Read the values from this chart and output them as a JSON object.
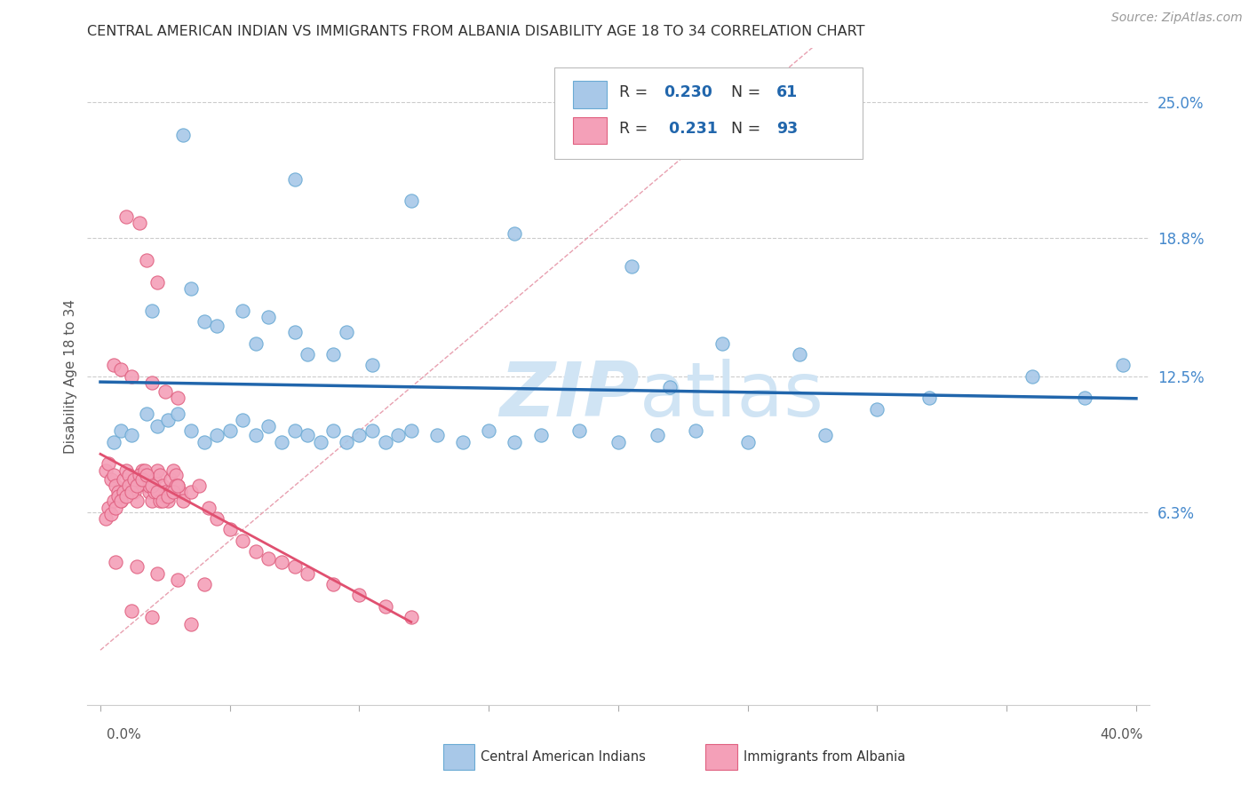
{
  "title": "CENTRAL AMERICAN INDIAN VS IMMIGRANTS FROM ALBANIA DISABILITY AGE 18 TO 34 CORRELATION CHART",
  "source": "Source: ZipAtlas.com",
  "ylabel": "Disability Age 18 to 34",
  "ytick_labels": [
    "25.0%",
    "18.8%",
    "12.5%",
    "6.3%"
  ],
  "ytick_values": [
    0.25,
    0.188,
    0.125,
    0.063
  ],
  "xlim": [
    -0.005,
    0.405
  ],
  "ylim": [
    -0.025,
    0.275
  ],
  "legend_r_blue": "0.230",
  "legend_n_blue": "61",
  "legend_r_pink": "0.231",
  "legend_n_pink": "93",
  "blue_color": "#a8c8e8",
  "blue_edge_color": "#6aaad4",
  "pink_color": "#f4a0b8",
  "pink_edge_color": "#e06080",
  "blue_line_color": "#2166ac",
  "pink_line_color": "#e05070",
  "diag_line_color": "#e8a0b0",
  "watermark_color": "#d0e4f4",
  "grid_color": "#cccccc",
  "title_color": "#333333",
  "source_color": "#999999",
  "ytick_color": "#4488cc",
  "xtick_color": "#555555"
}
